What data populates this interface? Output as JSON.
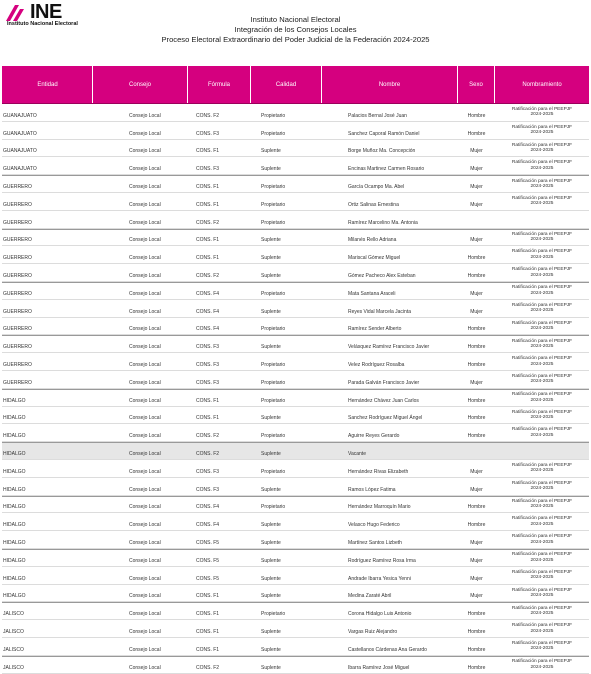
{
  "header": {
    "logo_text": "INE",
    "logo_subtitle": "Instituto Nacional Electoral",
    "title_1": "Instituto Nacional Electoral",
    "title_2": "Integración de los Consejos Locales",
    "title_3": "Proceso Electoral Extraordinario del Poder Judicial de la Federación 2024-2025"
  },
  "colors": {
    "header_bg": "#d5007f",
    "logo_accent": "#d5007f",
    "shaded_row": "#e6e6e6"
  },
  "table": {
    "columns": [
      "Entidad",
      "Consejo",
      "Fórmula",
      "Calidad",
      "Nombre",
      "Sexo",
      "Nombramiento"
    ],
    "remark_line_1": "Ratificación para el PEEPJF",
    "remark_line_2": "2024-2025",
    "rows": [
      {
        "entidad": "GUANAJUATO",
        "consejo": "Consejo Local",
        "formula": "CONS. F2",
        "calidad": "Propietario",
        "nombre": "Palacios Bernal José Juan",
        "sexo": "Hombre",
        "remark": true,
        "group": false,
        "shaded": false
      },
      {
        "entidad": "GUANAJUATO",
        "consejo": "Consejo Local",
        "formula": "CONS. F3",
        "calidad": "Propietario",
        "nombre": "Sanchez Caporal Ramón Daniel",
        "sexo": "Hombre",
        "remark": true,
        "group": false,
        "shaded": false
      },
      {
        "entidad": "GUANAJUATO",
        "consejo": "Consejo Local",
        "formula": "CONS. F1",
        "calidad": "Suplente",
        "nombre": "Borge Muñoz Ma. Concepción",
        "sexo": "Mujer",
        "remark": true,
        "group": false,
        "shaded": false
      },
      {
        "entidad": "GUANAJUATO",
        "consejo": "Consejo Local",
        "formula": "CONS. F3",
        "calidad": "Suplente",
        "nombre": "Encinas Martinez Carmen Rosario",
        "sexo": "Mujer",
        "remark": true,
        "group": false,
        "shaded": false
      },
      {
        "entidad": "GUERRERO",
        "consejo": "Consejo Local",
        "formula": "CONS. F1",
        "calidad": "Propietario",
        "nombre": "García Ocampo Ma. Abel",
        "sexo": "Mujer",
        "remark": true,
        "group": true,
        "shaded": false
      },
      {
        "entidad": "GUERRERO",
        "consejo": "Consejo Local",
        "formula": "CONS. F1",
        "calidad": "Propietario",
        "nombre": "Ortiz Salinas Ernestina",
        "sexo": "Mujer",
        "remark": true,
        "group": false,
        "shaded": false
      },
      {
        "entidad": "GUERRERO",
        "consejo": "Consejo Local",
        "formula": "CONS. F2",
        "calidad": "Propietario",
        "nombre": "Ramírez Marcelino Ma. Antonia",
        "sexo": "",
        "remark": false,
        "group": false,
        "shaded": false
      },
      {
        "entidad": "GUERRERO",
        "consejo": "Consejo Local",
        "formula": "CONS. F1",
        "calidad": "Suplente",
        "nombre": "Milanés Rello Adriana",
        "sexo": "Mujer",
        "remark": true,
        "group": true,
        "shaded": false
      },
      {
        "entidad": "GUERRERO",
        "consejo": "Consejo Local",
        "formula": "CONS. F1",
        "calidad": "Suplente",
        "nombre": "Mariscal Gómez Miguel",
        "sexo": "Hombre",
        "remark": true,
        "group": false,
        "shaded": false
      },
      {
        "entidad": "GUERRERO",
        "consejo": "Consejo Local",
        "formula": "CONS. F2",
        "calidad": "Suplente",
        "nombre": "Gómez Pacheco Alex Esteban",
        "sexo": "Hombre",
        "remark": true,
        "group": false,
        "shaded": false
      },
      {
        "entidad": "GUERRERO",
        "consejo": "Consejo Local",
        "formula": "CONS. F4",
        "calidad": "Propietario",
        "nombre": "Mata Santana Araceli",
        "sexo": "Mujer",
        "remark": true,
        "group": true,
        "shaded": false
      },
      {
        "entidad": "GUERRERO",
        "consejo": "Consejo Local",
        "formula": "CONS. F4",
        "calidad": "Suplente",
        "nombre": "Reyes Vidal Marcela Jacinta",
        "sexo": "Mujer",
        "remark": true,
        "group": false,
        "shaded": false
      },
      {
        "entidad": "GUERRERO",
        "consejo": "Consejo Local",
        "formula": "CONS. F4",
        "calidad": "Propietario",
        "nombre": "Ramírez Sender Alberto",
        "sexo": "Hombre",
        "remark": true,
        "group": false,
        "shaded": false
      },
      {
        "entidad": "GUERRERO",
        "consejo": "Consejo Local",
        "formula": "CONS. F3",
        "calidad": "Suplente",
        "nombre": "Velásquez Ramírez Francisco Javier",
        "sexo": "Hombre",
        "remark": true,
        "group": true,
        "shaded": false
      },
      {
        "entidad": "GUERRERO",
        "consejo": "Consejo Local",
        "formula": "CONS. F3",
        "calidad": "Propietario",
        "nombre": "Velez Rodríguez Rosalba",
        "sexo": "Hombre",
        "remark": true,
        "group": false,
        "shaded": false
      },
      {
        "entidad": "GUERRERO",
        "consejo": "Consejo Local",
        "formula": "CONS. F3",
        "calidad": "Propietario",
        "nombre": "Parada Galván Francisco Javier",
        "sexo": "Mujer",
        "remark": true,
        "group": false,
        "shaded": false
      },
      {
        "entidad": "HIDALGO",
        "consejo": "Consejo Local",
        "formula": "CONS. F1",
        "calidad": "Propietario",
        "nombre": "Hernández Chávez Juan Carlos",
        "sexo": "Hombre",
        "remark": true,
        "group": true,
        "shaded": false
      },
      {
        "entidad": "HIDALGO",
        "consejo": "Consejo Local",
        "formula": "CONS. F1",
        "calidad": "Suplente",
        "nombre": "Sanchez Rodríguez Miguel Ángel",
        "sexo": "Hombre",
        "remark": true,
        "group": false,
        "shaded": false
      },
      {
        "entidad": "HIDALGO",
        "consejo": "Consejo Local",
        "formula": "CONS. F2",
        "calidad": "Propietario",
        "nombre": "Aguirre Reyes Gerardo",
        "sexo": "Hombre",
        "remark": true,
        "group": false,
        "shaded": false
      },
      {
        "entidad": "HIDALGO",
        "consejo": "Consejo Local",
        "formula": "CONS. F2",
        "calidad": "Suplente",
        "nombre": "Vacante",
        "sexo": "",
        "remark": false,
        "group": true,
        "shaded": true
      },
      {
        "entidad": "HIDALGO",
        "consejo": "Consejo Local",
        "formula": "CONS. F3",
        "calidad": "Propietario",
        "nombre": "Hernández Rivas Elizabeth",
        "sexo": "Mujer",
        "remark": true,
        "group": false,
        "shaded": false
      },
      {
        "entidad": "HIDALGO",
        "consejo": "Consejo Local",
        "formula": "CONS. F3",
        "calidad": "Suplente",
        "nombre": "Ramos López Fatima",
        "sexo": "Mujer",
        "remark": true,
        "group": false,
        "shaded": false
      },
      {
        "entidad": "HIDALGO",
        "consejo": "Consejo Local",
        "formula": "CONS. F4",
        "calidad": "Propietario",
        "nombre": "Hernández Marroquín Mario",
        "sexo": "Hombre",
        "remark": true,
        "group": true,
        "shaded": false
      },
      {
        "entidad": "HIDALGO",
        "consejo": "Consejo Local",
        "formula": "CONS. F4",
        "calidad": "Suplente",
        "nombre": "Velasco Hugo Federico",
        "sexo": "Hombre",
        "remark": true,
        "group": false,
        "shaded": false
      },
      {
        "entidad": "HIDALGO",
        "consejo": "Consejo Local",
        "formula": "CONS. F5",
        "calidad": "Suplente",
        "nombre": "Martínez Santos Lizbeth",
        "sexo": "Mujer",
        "remark": true,
        "group": false,
        "shaded": false
      },
      {
        "entidad": "HIDALGO",
        "consejo": "Consejo Local",
        "formula": "CONS. F5",
        "calidad": "Suplente",
        "nombre": "Rodríguez Ramírez Rosa Irma",
        "sexo": "Mujer",
        "remark": true,
        "group": true,
        "shaded": false
      },
      {
        "entidad": "HIDALGO",
        "consejo": "Consejo Local",
        "formula": "CONS. F5",
        "calidad": "Suplente",
        "nombre": "Andrade Ibarra Yesica Yenni",
        "sexo": "Mujer",
        "remark": true,
        "group": false,
        "shaded": false
      },
      {
        "entidad": "HIDALGO",
        "consejo": "Consejo Local",
        "formula": "CONS. F1",
        "calidad": "Suplente",
        "nombre": "Medina Zaraté Abril",
        "sexo": "Mujer",
        "remark": true,
        "group": false,
        "shaded": false
      },
      {
        "entidad": "JALISCO",
        "consejo": "Consejo Local",
        "formula": "CONS. F1",
        "calidad": "Propietario",
        "nombre": "Corona Hidalgo Luis Antonio",
        "sexo": "Hombre",
        "remark": true,
        "group": true,
        "shaded": false
      },
      {
        "entidad": "JALISCO",
        "consejo": "Consejo Local",
        "formula": "CONS. F1",
        "calidad": "Suplente",
        "nombre": "Vargas Ruiz Alejandro",
        "sexo": "Hombre",
        "remark": true,
        "group": false,
        "shaded": false
      },
      {
        "entidad": "JALISCO",
        "consejo": "Consejo Local",
        "formula": "CONS. F1",
        "calidad": "Suplente",
        "nombre": "Castellanos Cárdenas Ana Gerardo",
        "sexo": "Hombre",
        "remark": true,
        "group": false,
        "shaded": false
      },
      {
        "entidad": "JALISCO",
        "consejo": "Consejo Local",
        "formula": "CONS. F2",
        "calidad": "Suplente",
        "nombre": "Ibarra Ramírez José Miguel",
        "sexo": "Hombre",
        "remark": true,
        "group": true,
        "shaded": false
      }
    ]
  }
}
